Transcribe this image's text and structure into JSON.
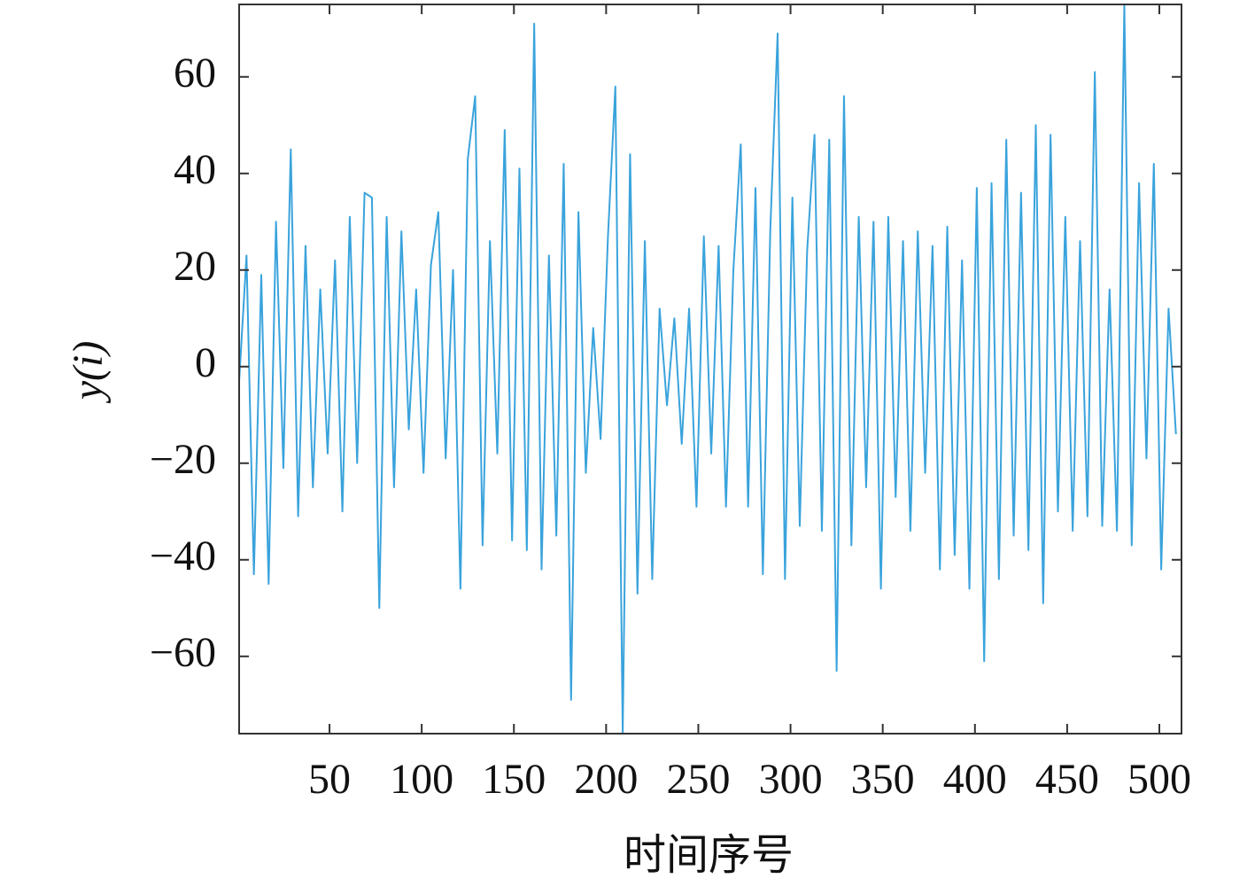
{
  "chart_data": {
    "type": "line",
    "x_label": "时间序号",
    "y_label": "y(i)",
    "color": "#3aa3dc",
    "x": [
      1,
      5,
      9,
      13,
      17,
      21,
      25,
      29,
      33,
      37,
      41,
      45,
      49,
      53,
      57,
      61,
      65,
      69,
      73,
      77,
      81,
      85,
      89,
      93,
      97,
      101,
      105,
      109,
      113,
      117,
      121,
      125,
      129,
      133,
      137,
      141,
      145,
      149,
      153,
      157,
      161,
      165,
      169,
      173,
      177,
      181,
      185,
      189,
      193,
      197,
      201,
      205,
      209,
      213,
      217,
      221,
      225,
      229,
      233,
      237,
      241,
      245,
      249,
      253,
      257,
      261,
      265,
      269,
      273,
      277,
      281,
      285,
      289,
      293,
      297,
      301,
      305,
      309,
      313,
      317,
      321,
      325,
      329,
      333,
      337,
      341,
      345,
      349,
      353,
      357,
      361,
      365,
      369,
      373,
      377,
      381,
      385,
      389,
      393,
      397,
      401,
      405,
      409,
      413,
      417,
      421,
      425,
      429,
      433,
      437,
      441,
      445,
      449,
      453,
      457,
      461,
      465,
      469,
      473,
      477,
      481,
      485,
      489,
      493,
      497,
      501,
      505,
      509
    ],
    "values": [
      -3,
      23,
      -43,
      19,
      -45,
      30,
      -21,
      45,
      -31,
      25,
      -25,
      16,
      -18,
      22,
      -30,
      31,
      -20,
      36,
      35,
      -50,
      31,
      -25,
      28,
      -13,
      16,
      -22,
      21,
      32,
      -19,
      20,
      -46,
      43,
      56,
      -37,
      26,
      -18,
      49,
      -36,
      41,
      -38,
      71,
      -42,
      23,
      -35,
      42,
      -69,
      32,
      -22,
      8,
      -15,
      27,
      58,
      -76,
      44,
      -47,
      26,
      -44,
      12,
      -8,
      10,
      -16,
      12,
      -29,
      27,
      -18,
      25,
      -29,
      20,
      46,
      -29,
      37,
      -43,
      28,
      69,
      -44,
      35,
      -33,
      24,
      48,
      -34,
      47,
      -63,
      56,
      -37,
      31,
      -25,
      30,
      -46,
      31,
      -27,
      26,
      -34,
      28,
      -22,
      25,
      -42,
      29,
      -39,
      22,
      -46,
      37,
      -61,
      38,
      -44,
      47,
      -35,
      36,
      -38,
      50,
      -49,
      48,
      -30,
      31,
      -34,
      26,
      -31,
      61,
      -33,
      16,
      -34,
      75,
      -37,
      38,
      -19,
      42,
      -42,
      12,
      -14
    ],
    "xlim": [
      1,
      512
    ],
    "ylim": [
      -76,
      75
    ],
    "xticks": [
      50,
      100,
      150,
      200,
      250,
      300,
      350,
      400,
      450,
      500
    ],
    "yticks": [
      {
        "value": -60,
        "label": "−60"
      },
      {
        "value": -40,
        "label": "−40"
      },
      {
        "value": -20,
        "label": "−20"
      },
      0,
      20,
      40,
      60
    ]
  }
}
